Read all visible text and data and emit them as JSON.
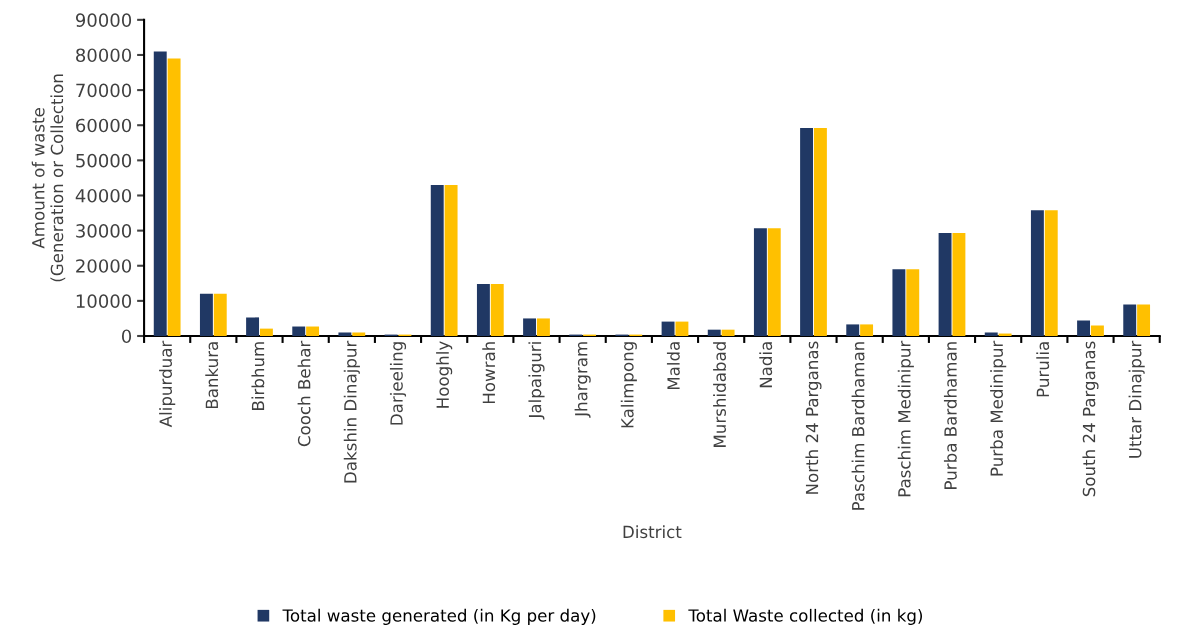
{
  "chart_data": {
    "type": "bar",
    "xlabel": "District",
    "ylabel": "Amount of waste\n(Generation or Collection",
    "categories": [
      "Alipurduar",
      "Bankura",
      "Birbhum",
      "Cooch Behar",
      "Dakshin Dinajpur",
      "Darjeeling",
      "Hooghly",
      "Howrah",
      "Jalpaiguri",
      "Jhargram",
      "Kalimpong",
      "Malda",
      "Murshidabad",
      "Nadia",
      "North 24 Parganas",
      "Paschim Bardhaman",
      "Paschim Medinipur",
      "Purba Bardhaman",
      "Purba Medinipur",
      "Purulia",
      "South 24 Parganas",
      "Uttar Dinajpur"
    ],
    "series": [
      {
        "name": "Total waste generated (in Kg per day)",
        "color": "#203864",
        "values": [
          81000,
          12000,
          5300,
          2700,
          1000,
          400,
          43000,
          14800,
          5000,
          400,
          400,
          4100,
          1800,
          30700,
          59200,
          3300,
          19000,
          29300,
          1000,
          35800,
          4400,
          9000
        ]
      },
      {
        "name": "Total Waste collected (in kg)",
        "color": "#ffc000",
        "values": [
          79000,
          12000,
          2100,
          2700,
          1000,
          400,
          43000,
          14800,
          5000,
          400,
          400,
          4100,
          1800,
          30700,
          59200,
          3300,
          19000,
          29300,
          700,
          35800,
          3000,
          9000
        ]
      }
    ],
    "ylim": [
      0,
      90000
    ],
    "yticks": [
      0,
      10000,
      20000,
      30000,
      40000,
      50000,
      60000,
      70000,
      80000,
      90000
    ],
    "grid": false,
    "legend": "bottom"
  }
}
